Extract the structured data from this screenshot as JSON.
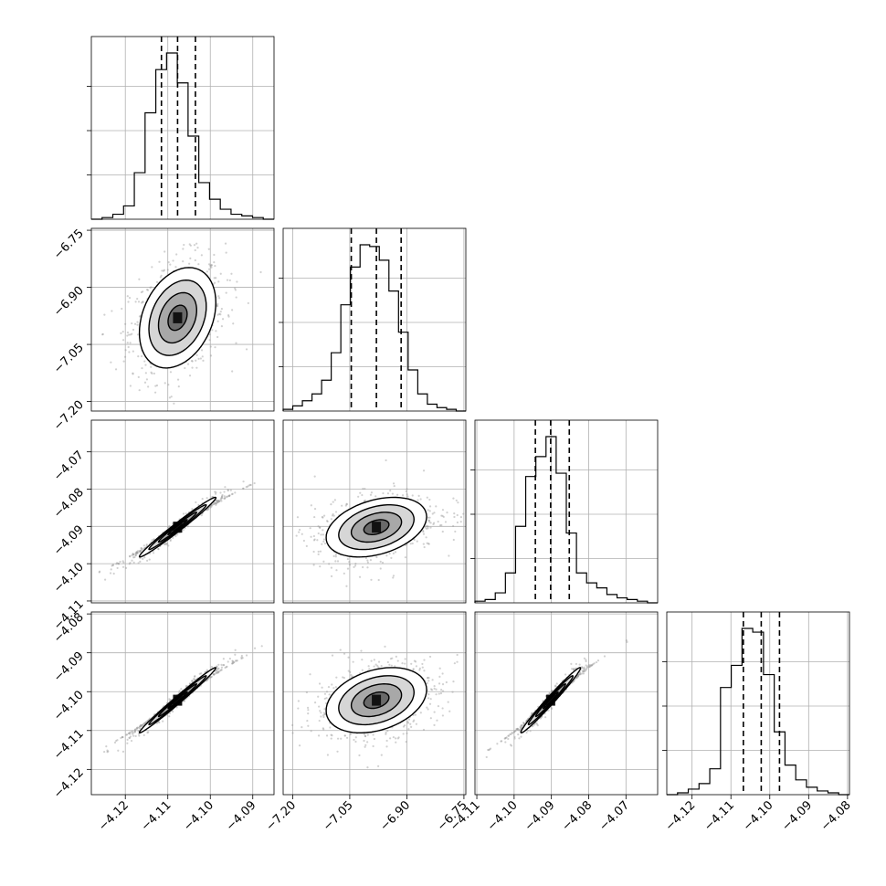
{
  "chart_data": {
    "type": "corner",
    "parameters": [
      {
        "ticks": [
          -4.12,
          -4.11,
          -4.1,
          -4.09
        ],
        "range": [
          -4.128,
          -4.085
        ],
        "quantiles": [
          -4.1115,
          -4.1077,
          -4.1035
        ],
        "hist": [
          0,
          1,
          3,
          8,
          28,
          64,
          90,
          100,
          82,
          50,
          22,
          12,
          6,
          3,
          2,
          1,
          0
        ]
      },
      {
        "ticks": [
          -7.2,
          -7.05,
          -6.9,
          -6.75
        ],
        "range": [
          -7.225,
          -6.745
        ],
        "quantiles": [
          -7.046,
          -6.98,
          -6.915
        ],
        "hist": [
          1,
          3,
          6,
          10,
          18,
          34,
          62,
          84,
          97,
          96,
          88,
          70,
          46,
          24,
          10,
          4,
          2,
          1,
          0
        ]
      },
      {
        "ticks": [
          -4.11,
          -4.1,
          -4.09,
          -4.08,
          -4.07
        ],
        "range": [
          -4.1105,
          -4.0615
        ],
        "quantiles": [
          -4.0943,
          -4.0902,
          -4.0852
        ],
        "hist": [
          1,
          2,
          6,
          18,
          46,
          76,
          88,
          100,
          78,
          42,
          18,
          12,
          9,
          5,
          3,
          2,
          1,
          0
        ]
      },
      {
        "ticks": [
          -4.12,
          -4.11,
          -4.1,
          -4.09,
          -4.08
        ],
        "range": [
          -4.1265,
          -4.0795
        ],
        "quantiles": [
          -4.1068,
          -4.1022,
          -4.0975
        ],
        "hist": [
          0,
          1,
          3,
          6,
          14,
          58,
          70,
          90,
          88,
          65,
          34,
          16,
          8,
          4,
          2,
          1,
          0
        ]
      }
    ],
    "tick_text": {
      "p0": [
        "−4.12",
        "−4.11",
        "−4.10",
        "−4.09"
      ],
      "p1": [
        "−7.20",
        "−7.05",
        "−6.90",
        "−6.75"
      ],
      "p2": [
        "−4.11",
        "−4.10",
        "−4.09",
        "−4.08",
        "−4.07"
      ],
      "p3": [
        "−4.12",
        "−4.11",
        "−4.10",
        "−4.09",
        "−4.08"
      ]
    },
    "pairs": [
      {
        "row": 1,
        "col": 0,
        "center": [
          -4.1077,
          -6.98
        ],
        "sd": [
          0.0045,
          0.066
        ],
        "rho": 0.3
      },
      {
        "row": 2,
        "col": 0,
        "center": [
          -4.1077,
          -4.0902
        ],
        "sd": [
          0.0045,
          0.004
        ],
        "rho": 0.985
      },
      {
        "row": 2,
        "col": 1,
        "center": [
          -6.98,
          -4.0902
        ],
        "sd": [
          0.066,
          0.004
        ],
        "rho": 0.35
      },
      {
        "row": 3,
        "col": 0,
        "center": [
          -4.1077,
          -4.1022
        ],
        "sd": [
          0.0045,
          0.0042
        ],
        "rho": 0.99
      },
      {
        "row": 3,
        "col": 1,
        "center": [
          -6.98,
          -4.1022
        ],
        "sd": [
          0.066,
          0.0042
        ],
        "rho": 0.32
      },
      {
        "row": 3,
        "col": 2,
        "center": [
          -4.0902,
          -4.1022
        ],
        "sd": [
          0.004,
          0.0042
        ],
        "rho": 0.985
      }
    ],
    "contour_levels_sigma": [
      0.5,
      1.0,
      1.5,
      2.0
    ],
    "grid": true,
    "xlabel": "",
    "ylabel": ""
  }
}
